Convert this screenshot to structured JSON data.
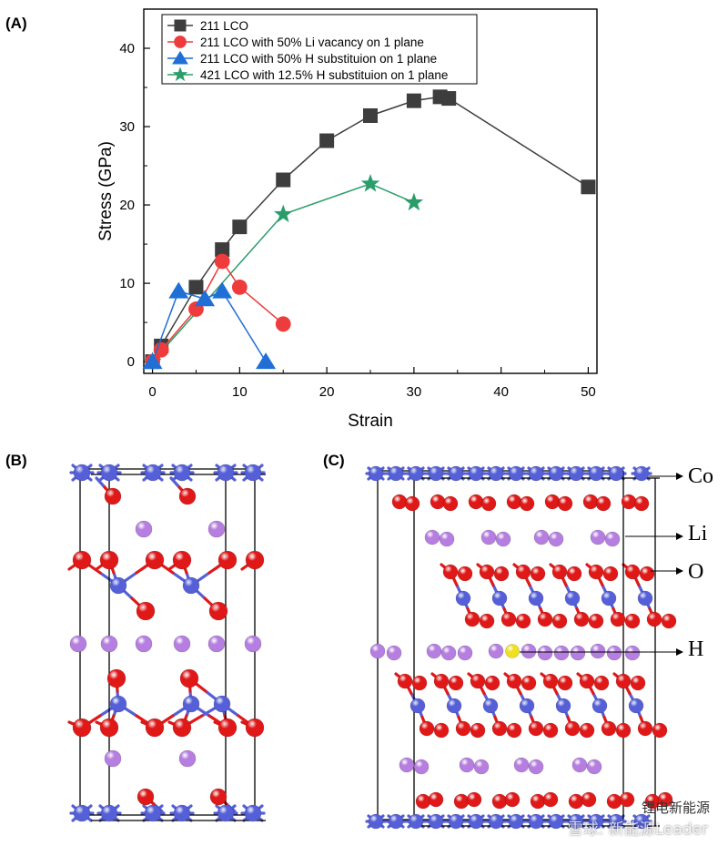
{
  "panels": {
    "a_label": "(A)",
    "b_label": "(B)",
    "c_label": "(C)"
  },
  "chart_data": {
    "type": "line",
    "title": "",
    "xlabel": "Strain",
    "ylabel": "Stress (GPa)",
    "xlim": [
      -1,
      51
    ],
    "ylim": [
      -1.5,
      45
    ],
    "xticks": [
      0,
      10,
      20,
      30,
      40,
      50
    ],
    "yticks": [
      0,
      10,
      20,
      30,
      40
    ],
    "legend_position": "top-left",
    "series": [
      {
        "name": "211 LCO",
        "marker": "square",
        "color": "#3d3d3d",
        "x": [
          0,
          1,
          5,
          8,
          10,
          15,
          20,
          25,
          30,
          33,
          34,
          50
        ],
        "y": [
          0,
          2,
          9.5,
          14.3,
          17.2,
          23.2,
          28.2,
          31.4,
          33.3,
          33.8,
          33.6,
          22.3
        ]
      },
      {
        "name": "211 LCO with 50% Li vacancy on 1 plane",
        "marker": "circle",
        "color": "#ee3b3b",
        "x": [
          0,
          1,
          5,
          8,
          10,
          15
        ],
        "y": [
          0,
          1.5,
          6.7,
          12.8,
          9.5,
          4.8
        ]
      },
      {
        "name": "211 LCO with 50% H substituion on 1 plane",
        "marker": "triangle",
        "color": "#1f6fd6",
        "x": [
          0,
          3,
          6,
          8,
          13
        ],
        "y": [
          0,
          9,
          8,
          9,
          0
        ]
      },
      {
        "name": "421 LCO with 12.5% H substituion on 1 plane",
        "marker": "star",
        "color": "#2a9d6a",
        "x": [
          0,
          15,
          25,
          30
        ],
        "y": [
          0,
          18.8,
          22.7,
          20.3
        ]
      }
    ]
  },
  "structure_labels": {
    "co": "Co",
    "li": "Li",
    "o": "O",
    "h": "H"
  },
  "colors": {
    "co": "#5560d8",
    "o": "#e01818",
    "li": "#b57ee0",
    "h": "#f0e020"
  },
  "watermark": {
    "line1": "锂电新能源",
    "line2": "雪球: 新能源Leader"
  }
}
